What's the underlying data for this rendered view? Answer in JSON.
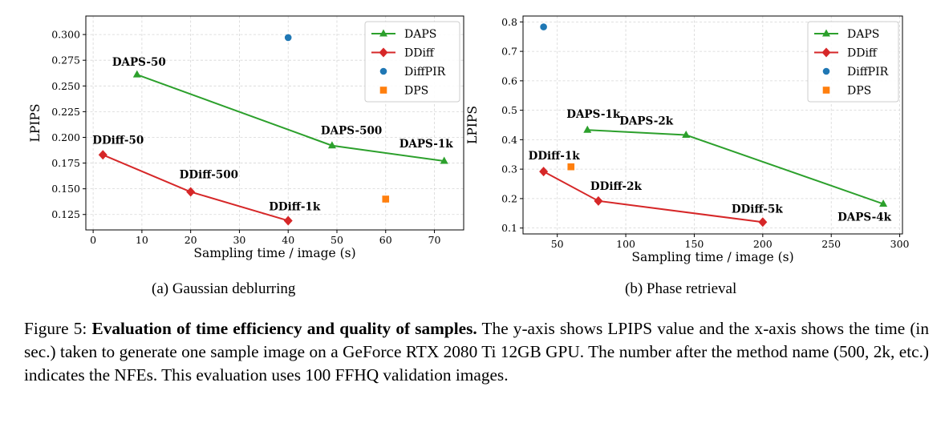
{
  "chart_data": [
    {
      "id": "a",
      "type": "line+scatter",
      "subtitle": "(a) Gaussian deblurring",
      "xlabel": "Sampling time / image (s)",
      "ylabel": "LPIPS",
      "xlim": [
        -1.5,
        76
      ],
      "ylim": [
        0.11,
        0.318
      ],
      "xticks": [
        0,
        10,
        20,
        30,
        40,
        50,
        60,
        70
      ],
      "xtick_labels": [
        "0",
        "10",
        "20",
        "30",
        "40",
        "50",
        "60",
        "70"
      ],
      "yticks": [
        0.125,
        0.15,
        0.175,
        0.2,
        0.225,
        0.25,
        0.275,
        0.3
      ],
      "ytick_labels": [
        "0.125",
        "0.150",
        "0.175",
        "0.200",
        "0.225",
        "0.250",
        "0.275",
        "0.300"
      ],
      "grid": true,
      "legend_position": "top-right",
      "series": [
        {
          "name": "DAPS",
          "kind": "line",
          "marker": "triangle",
          "color": "#2ca02c",
          "x": [
            9,
            49,
            72
          ],
          "y": [
            0.261,
            0.192,
            0.177
          ],
          "labels": [
            "DAPS-50",
            "DAPS-500",
            "DAPS-1k"
          ]
        },
        {
          "name": "DDiff",
          "kind": "line",
          "marker": "diamond",
          "color": "#d62728",
          "x": [
            2,
            20,
            40
          ],
          "y": [
            0.183,
            0.147,
            0.119
          ],
          "labels": [
            "DDiff-50",
            "DDiff-500",
            "DDiff-1k"
          ]
        },
        {
          "name": "DiffPIR",
          "kind": "scatter",
          "marker": "circle",
          "color": "#1f77b4",
          "x": [
            40
          ],
          "y": [
            0.297
          ],
          "labels": [
            ""
          ]
        },
        {
          "name": "DPS",
          "kind": "scatter",
          "marker": "square",
          "color": "#ff7f0e",
          "x": [
            60
          ],
          "y": [
            0.14
          ],
          "labels": [
            ""
          ]
        }
      ]
    },
    {
      "id": "b",
      "type": "line+scatter",
      "subtitle": "(b) Phase retrieval",
      "xlabel": "Sampling time / image (s)",
      "ylabel": "LPIPS",
      "xlim": [
        25,
        302
      ],
      "ylim": [
        0.08,
        0.82
      ],
      "xticks": [
        50,
        100,
        150,
        200,
        250,
        300
      ],
      "xtick_labels": [
        "50",
        "100",
        "150",
        "200",
        "250",
        "300"
      ],
      "yticks": [
        0.1,
        0.2,
        0.3,
        0.4,
        0.5,
        0.6,
        0.7,
        0.8
      ],
      "ytick_labels": [
        "0.1",
        "0.2",
        "0.3",
        "0.4",
        "0.5",
        "0.6",
        "0.7",
        "0.8"
      ],
      "grid": true,
      "legend_position": "top-right",
      "series": [
        {
          "name": "DAPS",
          "kind": "line",
          "marker": "triangle",
          "color": "#2ca02c",
          "x": [
            72,
            144,
            288
          ],
          "y": [
            0.433,
            0.416,
            0.182
          ],
          "labels": [
            "DAPS-1k",
            "DAPS-2k",
            "DAPS-4k"
          ]
        },
        {
          "name": "DDiff",
          "kind": "line",
          "marker": "diamond",
          "color": "#d62728",
          "x": [
            40,
            80,
            200
          ],
          "y": [
            0.292,
            0.192,
            0.12
          ],
          "labels": [
            "DDiff-1k",
            "DDiff-2k",
            "DDiff-5k"
          ]
        },
        {
          "name": "DiffPIR",
          "kind": "scatter",
          "marker": "circle",
          "color": "#1f77b4",
          "x": [
            40
          ],
          "y": [
            0.783
          ],
          "labels": [
            ""
          ]
        },
        {
          "name": "DPS",
          "kind": "scatter",
          "marker": "square",
          "color": "#ff7f0e",
          "x": [
            60
          ],
          "y": [
            0.308
          ],
          "labels": [
            ""
          ]
        }
      ]
    }
  ],
  "caption": {
    "figure_label": "Figure 5:",
    "bold_title": "Evaluation of time efficiency and quality of samples.",
    "body": "The y-axis shows LPIPS value and the x-axis shows the time (in sec.) taken to generate one sample image on a GeForce RTX 2080 Ti 12GB GPU. The number after the method name (500, 2k, etc.) indicates the NFEs. This evaluation uses 100 FFHQ validation images."
  }
}
